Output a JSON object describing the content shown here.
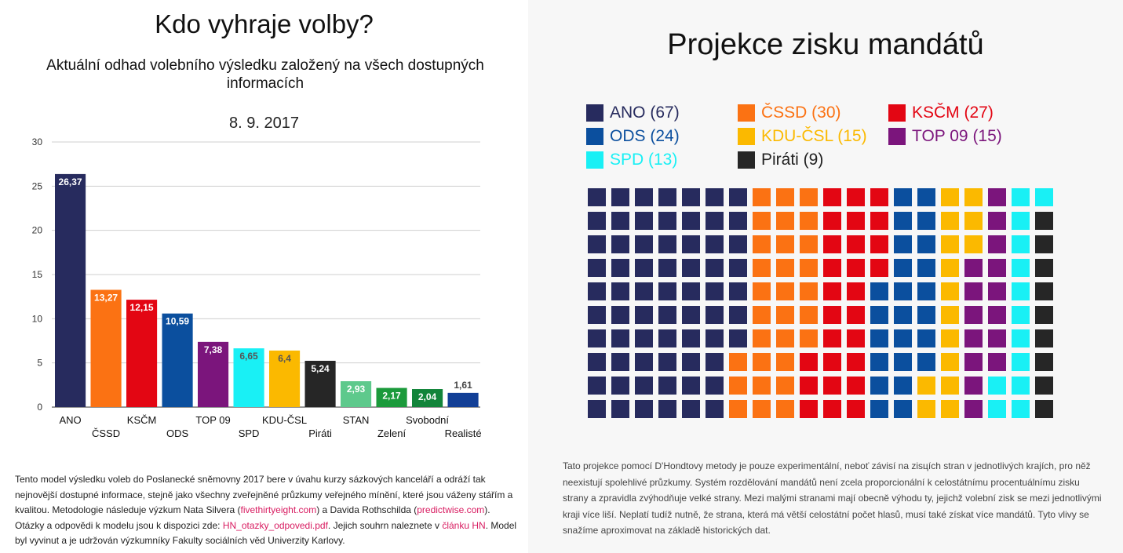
{
  "left": {
    "title": "Kdo vyhraje volby?",
    "subtitle": "Aktuální odhad volebního výsledku založený na všech dostupných informacích",
    "date": "8. 9. 2017",
    "footer": {
      "p1": "Tento model výsledku voleb do Poslanecké sněmovny 2017 bere v úvahu kurzy sázkových kanceláří a odráží tak nejnovější dostupné informace, stejně jako všechny zveřejněné průzkumy veřejného mínění, které jsou váženy stářím a kvalitou. Metodologie následuje výzkum Nata Silvera (",
      "link1": "fivethirtyeight.com",
      "p2": ") a Davida Rothschilda (",
      "link2": "predictwise.com",
      "p3": "). Otázky a odpovědi k modelu jsou k dispozici zde: ",
      "link3": "HN_otazky_odpovedi.pdf",
      "p4": ". Jejich souhrn naleznete v ",
      "link4": "článku HN",
      "p5": ". Model byl vyvinut a je udržován výzkumníky Fakulty sociálních věd Univerzity Karlovy."
    }
  },
  "right": {
    "title": "Projekce zisku mandátů",
    "legend": [
      {
        "label": "ANO (67)",
        "color": "#272b5e"
      },
      {
        "label": "ČSSD (30)",
        "color": "#fb7213"
      },
      {
        "label": "KSČM (27)",
        "color": "#e30613"
      },
      {
        "label": "ODS (24)",
        "color": "#0b4f9e"
      },
      {
        "label": "KDU-ČSL (15)",
        "color": "#fbb900"
      },
      {
        "label": "TOP 09 (15)",
        "color": "#7b157c"
      },
      {
        "label": "SPD (13)",
        "color": "#19f0f5"
      },
      {
        "label": "Piráti (9)",
        "color": "#262626"
      }
    ],
    "footer": "Tato projekce pomocí D'Hondtovy metody je pouze experimentální, neboť závisí na zisцích stran v jednotlivých krajích, pro něž neexistují spolehlivé průzkumy. Systém rozdělování mandátů není zcela proporcionální k celostátnímu procentuálnímu zisku strany a zpravidla zvýhodňuje velké strany. Mezi malými stranami mají obecně výhodu ty, jejichž volební zisk se mezi jednotlivými kraji více liší. Neplatí tudíž nutně, že strana, která má větší celostátní počet hlasů, musí také získat více mandátů. Tyto vlivy se snažíme aproximovat na základě historických dat."
  },
  "chart_data": [
    {
      "type": "bar",
      "title": "8. 9. 2017",
      "categories": [
        "ANO",
        "ČSSD",
        "KSČM",
        "ODS",
        "TOP 09",
        "SPD",
        "KDU-ČSL",
        "Piráti",
        "STAN",
        "Zelení",
        "Svobodní",
        "Realisté"
      ],
      "values": [
        26.37,
        13.27,
        12.15,
        10.59,
        7.38,
        6.65,
        6.4,
        5.24,
        2.93,
        2.17,
        2.04,
        1.61
      ],
      "value_labels": [
        "26,37",
        "13,27",
        "12,15",
        "10,59",
        "7,38",
        "6,65",
        "6,4",
        "5,24",
        "2,93",
        "2,17",
        "2,04",
        "1,61"
      ],
      "colors": [
        "#272b5e",
        "#fb7213",
        "#e30613",
        "#0b4f9e",
        "#7b157c",
        "#19f0f5",
        "#fbb900",
        "#262626",
        "#5ec98c",
        "#1b9a3b",
        "#12843a",
        "#123f96"
      ],
      "yticks": [
        "0",
        "5",
        "10",
        "15",
        "20",
        "25",
        "30"
      ],
      "ylim": [
        0,
        30
      ],
      "grid": true,
      "xlabel": "",
      "ylabel": ""
    },
    {
      "type": "waffle",
      "title": "Projekce zisku mandátů",
      "rows": 10,
      "columns": 20,
      "series": [
        {
          "name": "ANO",
          "value": 67
        },
        {
          "name": "ČSSD",
          "value": 30
        },
        {
          "name": "KSČM",
          "value": 27
        },
        {
          "name": "ODS",
          "value": 24
        },
        {
          "name": "KDU-ČSL",
          "value": 15
        },
        {
          "name": "TOP 09",
          "value": 15
        },
        {
          "name": "SPD",
          "value": 13
        },
        {
          "name": "Piráti",
          "value": 9
        }
      ]
    }
  ]
}
